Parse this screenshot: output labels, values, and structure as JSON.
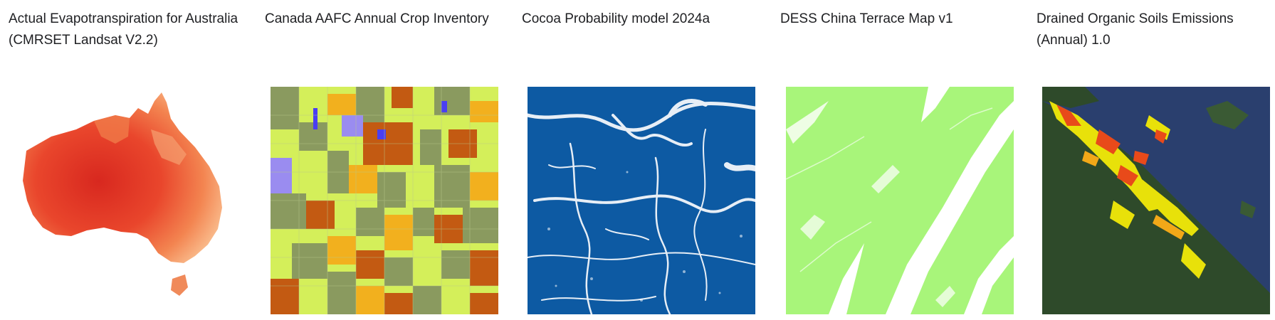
{
  "datasets": [
    {
      "title": "Actual Evapotranspiration for Australia (CMRSET Landsat V2.2)",
      "thumbnail_icon": "australia-map-thumbnail",
      "colors": [
        "#e8322a",
        "#f06a3a",
        "#f9b27a",
        "#fde8d8"
      ]
    },
    {
      "title": "Canada AAFC Annual Crop Inventory",
      "thumbnail_icon": "crop-inventory-thumbnail",
      "colors": [
        "#d4ef5a",
        "#8a9a5f",
        "#c35a12",
        "#f2b01e",
        "#9a8cf0",
        "#4a3ef2"
      ]
    },
    {
      "title": "Cocoa Probability model 2024a",
      "thumbnail_icon": "cocoa-probability-thumbnail",
      "colors": [
        "#0d5aa3",
        "#ffffff"
      ]
    },
    {
      "title": "DESS China Terrace Map v1",
      "thumbnail_icon": "terrace-map-thumbnail",
      "colors": [
        "#a8f57a",
        "#ffffff"
      ]
    },
    {
      "title": "Drained Organic Soils Emissions (Annual) 1.0",
      "thumbnail_icon": "organic-soils-thumbnail",
      "colors": [
        "#2e4a2a",
        "#e8e10a",
        "#e84a1a",
        "#2a3f6e"
      ]
    }
  ]
}
